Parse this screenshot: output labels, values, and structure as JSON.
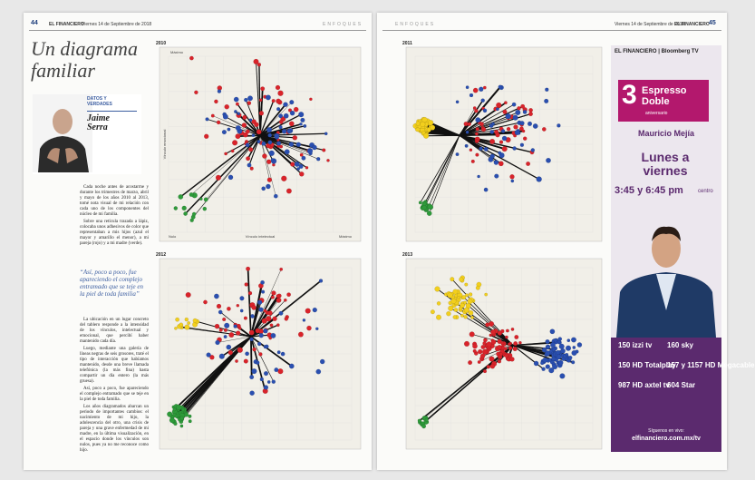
{
  "header": {
    "left_page": "44",
    "left_paper": "EL FINANCIERO",
    "left_date": "Viernes 14 de Septiembre de 2018",
    "section_left": "ENFOQUES",
    "section_right": "ENFOQUES",
    "right_date": "Viernes 14 de Septiembre de 2018",
    "right_paper": "EL FINANCIERO",
    "right_page": "45"
  },
  "article": {
    "title": "Un diagrama familiar",
    "column": "DATOS Y VERDADES",
    "author": "Jaime Serra",
    "paragraphs": [
      "Cada noche antes de acostarme y durante los trimestres de marzo, abril y mayo de los años 2010 al 2013, tomé nota visual de mi relación con cada uno de los componentes del núcleo de mi familia.",
      "Sobre una retícula trazada a lápiz, colocaba unos adhesivos de color que representaban a mis hijos (azul el mayor y amarillo el menor), a mi pareja (rojo) y a mi madre (verde).",
      "La ubicación en un lugar concreto del tablero responde a la intensidad de los vínculos, intelectual y emocional, que percibí haber mantenido cada día.",
      "Luego, mediante una galería de líneas negras de seis grosores, traté el tipo de interacción que habíamos mantenido, desde una breve llamada telefónica (la más fina) hasta compartir un día entero (la más gruesa).",
      "Así, poco a poco, fue apareciendo el complejo entramado que se teje en la piel de toda familia.",
      "Los años diagramados abarcan un periodo de importantes cambios: el nacimiento de mi hijo, la adolescencia del otro, una crisis de pareja y una grave enfermedad de mi madre, en la última visualización, en el espacio donde los vínculos son nulos, pues ya no me reconoce como hijo."
    ],
    "quote": "“Así, poco a poco, fue apareciendo el complejo entramado que se teje en la piel de toda familia”"
  },
  "charts": [
    {
      "year": "2010"
    },
    {
      "year": "2011"
    },
    {
      "year": "2012"
    },
    {
      "year": "2013"
    }
  ],
  "axes": {
    "y": "Vínculo emocional",
    "x": "Vínculo intelectual",
    "max": "Máximo",
    "min": "Nulo"
  },
  "ad": {
    "brand": "EL FINANCIERO | Bloomberg TV",
    "show_number": "3",
    "show_name": "Espresso Doble",
    "show_tag": "aniversario",
    "host": "Mauricio Mejía",
    "days": "Lunes a viernes",
    "time": "3:45 y 6:45 pm",
    "zone": "centro",
    "channels": [
      "150 izzi tv",
      "160 sky",
      "150 HD Totalplay",
      "157 y 1157 HD Megacable",
      "987 HD axtel tv",
      "604 Star"
    ],
    "follow": "Síguenos en vivo:",
    "url": "elfinanciero.com.mx/tv"
  }
}
